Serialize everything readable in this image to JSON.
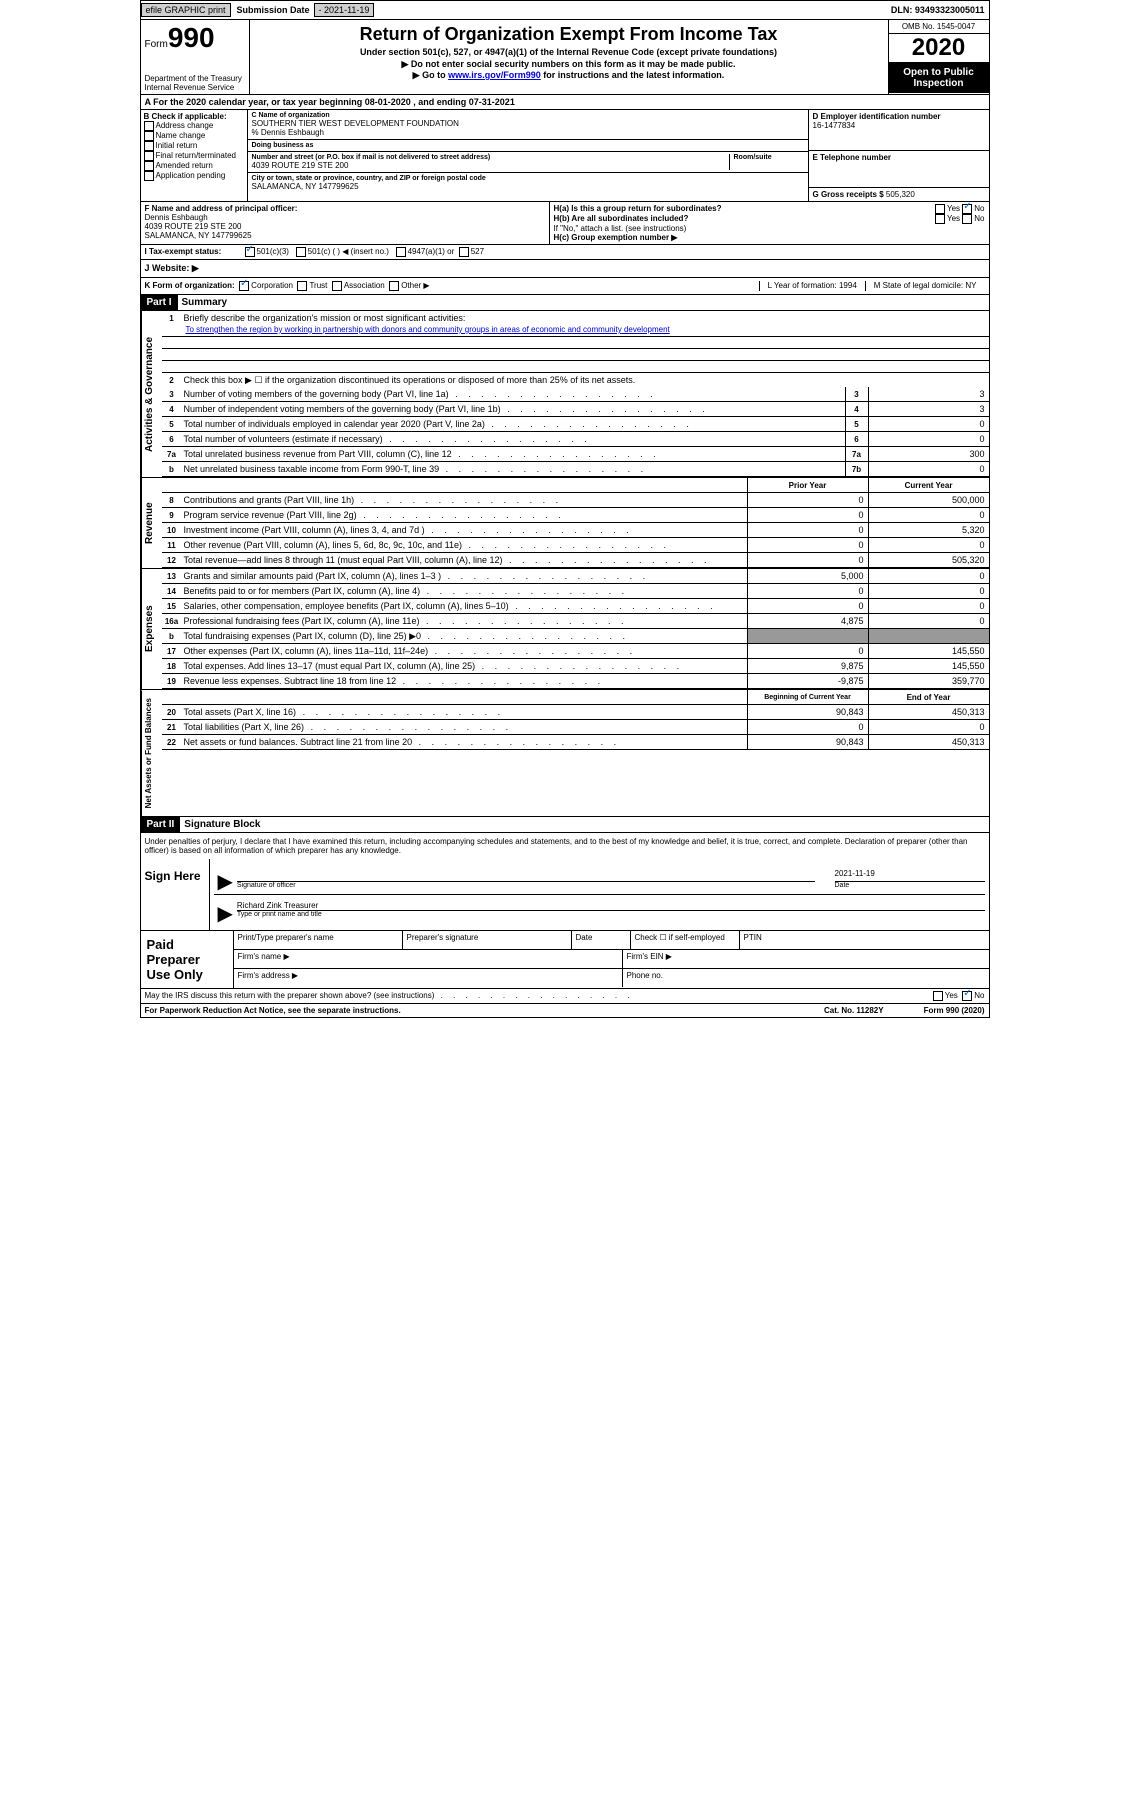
{
  "topbar": {
    "efile": "efile GRAPHIC print",
    "sub_label": "Submission Date",
    "sub_date": "- 2021-11-19",
    "dln": "DLN: 93493323005011"
  },
  "header": {
    "form_prefix": "Form",
    "form_no": "990",
    "dept1": "Department of the Treasury",
    "dept2": "Internal Revenue Service",
    "title": "Return of Organization Exempt From Income Tax",
    "subtitle": "Under section 501(c), 527, or 4947(a)(1) of the Internal Revenue Code (except private foundations)",
    "note1": "▶ Do not enter social security numbers on this form as it may be made public.",
    "note2_pre": "▶ Go to ",
    "note2_link": "www.irs.gov/Form990",
    "note2_post": " for instructions and the latest information.",
    "omb": "OMB No. 1545-0047",
    "year": "2020",
    "inspect": "Open to Public Inspection"
  },
  "row_a": "A For the 2020 calendar year, or tax year beginning 08-01-2020     , and ending 07-31-2021",
  "box_b": {
    "label": "B Check if applicable:",
    "opts": [
      "Address change",
      "Name change",
      "Initial return",
      "Final return/terminated",
      "Amended return",
      "Application pending"
    ]
  },
  "box_c": {
    "name_label": "C Name of organization",
    "name": "SOUTHERN TIER WEST DEVELOPMENT FOUNDATION",
    "care_pre": "% ",
    "care": "Dennis Eshbaugh",
    "dba_label": "Doing business as",
    "addr_label": "Number and street (or P.O. box if mail is not delivered to street address)",
    "addr": "4039 ROUTE 219 STE 200",
    "room_label": "Room/suite",
    "city_label": "City or town, state or province, country, and ZIP or foreign postal code",
    "city": "SALAMANCA, NY  147799625"
  },
  "box_d": {
    "ein_label": "D Employer identification number",
    "ein": "16-1477834",
    "tel_label": "E Telephone number",
    "gross_label": "G Gross receipts $ ",
    "gross": "505,320"
  },
  "box_f": {
    "label": "F  Name and address of principal officer:",
    "name": "Dennis Eshbaugh",
    "addr1": "4039 ROUTE 219 STE 200",
    "addr2": "SALAMANCA, NY  147799625"
  },
  "box_h": {
    "ha": "H(a)  Is this a group return for subordinates?",
    "hb": "H(b)  Are all subordinates included?",
    "hb_note": "If \"No,\" attach a list. (see instructions)",
    "hc": "H(c)  Group exemption number ▶",
    "yes": "Yes",
    "no": "No"
  },
  "tax_status": {
    "label": "I   Tax-exempt status:",
    "o1": "501(c)(3)",
    "o2": "501(c) (  ) ◀ (insert no.)",
    "o3": "4947(a)(1) or",
    "o4": "527"
  },
  "website": "J   Website: ▶",
  "row_k": {
    "label": "K Form of organization:",
    "opts": [
      "Corporation",
      "Trust",
      "Association",
      "Other ▶"
    ],
    "l": "L Year of formation: 1994",
    "m": "M State of legal domicile: NY"
  },
  "part1": {
    "header": "Part I",
    "title": "Summary",
    "line1_label": "Briefly describe the organization's mission or most significant activities:",
    "mission": "To strengthen the region by working in partnership with donors and community groups in areas of economic and community development",
    "line2": "Check this box ▶ ☐  if the organization discontinued its operations or disposed of more than 25% of its net assets.",
    "lines_gov": [
      {
        "no": "3",
        "text": "Number of voting members of the governing body (Part VI, line 1a)",
        "box": "3",
        "val": "3"
      },
      {
        "no": "4",
        "text": "Number of independent voting members of the governing body (Part VI, line 1b)",
        "box": "4",
        "val": "3"
      },
      {
        "no": "5",
        "text": "Total number of individuals employed in calendar year 2020 (Part V, line 2a)",
        "box": "5",
        "val": "0"
      },
      {
        "no": "6",
        "text": "Total number of volunteers (estimate if necessary)",
        "box": "6",
        "val": "0"
      },
      {
        "no": "7a",
        "text": "Total unrelated business revenue from Part VIII, column (C), line 12",
        "box": "7a",
        "val": "300"
      },
      {
        "no": "b",
        "text": "Net unrelated business taxable income from Form 990-T, line 39",
        "box": "7b",
        "val": "0"
      }
    ],
    "col_prior": "Prior Year",
    "col_current": "Current Year",
    "lines_rev": [
      {
        "no": "8",
        "text": "Contributions and grants (Part VIII, line 1h)",
        "prior": "0",
        "curr": "500,000"
      },
      {
        "no": "9",
        "text": "Program service revenue (Part VIII, line 2g)",
        "prior": "0",
        "curr": "0"
      },
      {
        "no": "10",
        "text": "Investment income (Part VIII, column (A), lines 3, 4, and 7d )",
        "prior": "0",
        "curr": "5,320"
      },
      {
        "no": "11",
        "text": "Other revenue (Part VIII, column (A), lines 5, 6d, 8c, 9c, 10c, and 11e)",
        "prior": "0",
        "curr": "0"
      },
      {
        "no": "12",
        "text": "Total revenue—add lines 8 through 11 (must equal Part VIII, column (A), line 12)",
        "prior": "0",
        "curr": "505,320"
      }
    ],
    "lines_exp": [
      {
        "no": "13",
        "text": "Grants and similar amounts paid (Part IX, column (A), lines 1–3 )",
        "prior": "5,000",
        "curr": "0"
      },
      {
        "no": "14",
        "text": "Benefits paid to or for members (Part IX, column (A), line 4)",
        "prior": "0",
        "curr": "0"
      },
      {
        "no": "15",
        "text": "Salaries, other compensation, employee benefits (Part IX, column (A), lines 5–10)",
        "prior": "0",
        "curr": "0"
      },
      {
        "no": "16a",
        "text": "Professional fundraising fees (Part IX, column (A), line 11e)",
        "prior": "4,875",
        "curr": "0"
      },
      {
        "no": "b",
        "text": "Total fundraising expenses (Part IX, column (D), line 25) ▶0",
        "prior": "",
        "curr": "",
        "gray": true
      },
      {
        "no": "17",
        "text": "Other expenses (Part IX, column (A), lines 11a–11d, 11f–24e)",
        "prior": "0",
        "curr": "145,550"
      },
      {
        "no": "18",
        "text": "Total expenses. Add lines 13–17 (must equal Part IX, column (A), line 25)",
        "prior": "9,875",
        "curr": "145,550"
      },
      {
        "no": "19",
        "text": "Revenue less expenses. Subtract line 18 from line 12",
        "prior": "-9,875",
        "curr": "359,770"
      }
    ],
    "col_begin": "Beginning of Current Year",
    "col_end": "End of Year",
    "lines_net": [
      {
        "no": "20",
        "text": "Total assets (Part X, line 16)",
        "prior": "90,843",
        "curr": "450,313"
      },
      {
        "no": "21",
        "text": "Total liabilities (Part X, line 26)",
        "prior": "0",
        "curr": "0"
      },
      {
        "no": "22",
        "text": "Net assets or fund balances. Subtract line 21 from line 20",
        "prior": "90,843",
        "curr": "450,313"
      }
    ],
    "vlabels": {
      "gov": "Activities & Governance",
      "rev": "Revenue",
      "exp": "Expenses",
      "net": "Net Assets or Fund Balances"
    }
  },
  "part2": {
    "header": "Part II",
    "title": "Signature Block",
    "perjury": "Under penalties of perjury, I declare that I have examined this return, including accompanying schedules and statements, and to the best of my knowledge and belief, it is true, correct, and complete. Declaration of preparer (other than officer) is based on all information of which preparer has any knowledge.",
    "sign_here": "Sign Here",
    "sig_officer": "Signature of officer",
    "sig_date_label": "Date",
    "sig_date": "2021-11-19",
    "sig_name": "Richard Zink  Treasurer",
    "sig_type": "Type or print name and title",
    "paid": "Paid Preparer Use Only",
    "prep_name": "Print/Type preparer's name",
    "prep_sig": "Preparer's signature",
    "prep_date": "Date",
    "prep_check": "Check ☐  if self-employed",
    "ptin": "PTIN",
    "firm_name": "Firm's name      ▶",
    "firm_ein": "Firm's EIN ▶",
    "firm_addr": "Firm's address ▶",
    "phone": "Phone no.",
    "irs_discuss": "May the IRS discuss this return with the preparer shown above? (see instructions)",
    "yes": "Yes",
    "no": "No"
  },
  "footer": {
    "paperwork": "For Paperwork Reduction Act Notice, see the separate instructions.",
    "cat": "Cat. No. 11282Y",
    "form": "Form 990 (2020)"
  }
}
